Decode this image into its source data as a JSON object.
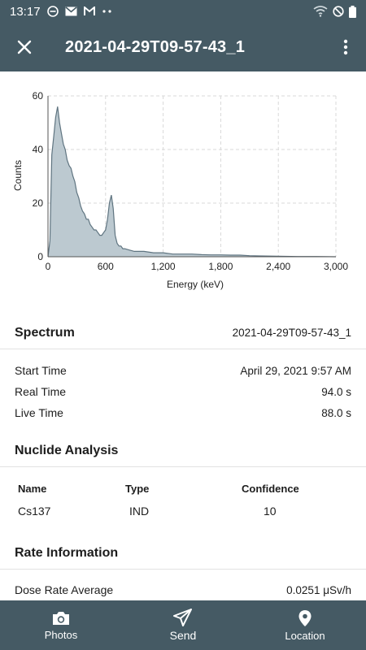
{
  "status_bar": {
    "time": "13:17",
    "icons_left": [
      "do-not-disturb-icon",
      "mail-icon",
      "gmail-icon",
      "more-dots-icon"
    ],
    "icons_right": [
      "wifi-icon",
      "blocked-icon",
      "battery-icon"
    ]
  },
  "app_bar": {
    "title": "2021-04-29T09-57-43_1",
    "close_icon": "close-icon",
    "menu_icon": "more-vert-icon"
  },
  "chart_data": {
    "type": "area",
    "title": "",
    "xlabel": "Energy (keV)",
    "ylabel": "Counts",
    "xlim": [
      0,
      3000
    ],
    "ylim": [
      0,
      60
    ],
    "x_ticks": [
      "0",
      "600",
      "1,200",
      "1,800",
      "2,400",
      "3,000"
    ],
    "y_ticks": [
      "0",
      "20",
      "40",
      "60"
    ],
    "grid": true,
    "series": [
      {
        "x": [
          0,
          20,
          40,
          60,
          80,
          100,
          120,
          140,
          160,
          180,
          200,
          220,
          240,
          260,
          280,
          300,
          320,
          340,
          360,
          380,
          400,
          420,
          440,
          460,
          480,
          500,
          520,
          540,
          560,
          580,
          600,
          620,
          640,
          660,
          680,
          700,
          720,
          740,
          760,
          780,
          800,
          850,
          900,
          950,
          1000,
          1100,
          1200,
          1300,
          1400,
          1500,
          1600,
          1700,
          1800,
          1900,
          2000,
          2100,
          2200,
          2400,
          2600,
          2800,
          3000
        ],
        "values": [
          0,
          6,
          38,
          45,
          52,
          56,
          50,
          46,
          42,
          40,
          36,
          34,
          33,
          30,
          28,
          24,
          22,
          19,
          17,
          16,
          14,
          14,
          12,
          11,
          10,
          10,
          9,
          8,
          8,
          9,
          10,
          14,
          20,
          23,
          18,
          8,
          5,
          4,
          4,
          3,
          3,
          2.5,
          2,
          2,
          2,
          1.5,
          1.5,
          1,
          1,
          1,
          0.8,
          0.7,
          0.7,
          0.6,
          0.6,
          0.4,
          0.3,
          0.2,
          0.1,
          0.1,
          0
        ]
      }
    ],
    "line_color": "#5f7480",
    "fill_color": "#bcc9d0"
  },
  "spectrum": {
    "title": "Spectrum",
    "name": "2021-04-29T09-57-43_1",
    "rows": [
      {
        "label": "Start Time",
        "value": "April 29, 2021 9:57 AM"
      },
      {
        "label": "Real Time",
        "value": "94.0 s"
      },
      {
        "label": "Live Time",
        "value": "88.0 s"
      }
    ]
  },
  "nuclide": {
    "title": "Nuclide Analysis",
    "headers": [
      "Name",
      "Type",
      "Confidence"
    ],
    "rows": [
      {
        "name": "Cs137",
        "type": "IND",
        "confidence": "10"
      }
    ]
  },
  "rate": {
    "title": "Rate Information",
    "rows": [
      {
        "label": "Dose Rate Average",
        "value": "0.0251 μSv/h"
      }
    ]
  },
  "bottom_nav": {
    "items": [
      {
        "label": "Photos",
        "icon": "camera-icon"
      },
      {
        "label": "Send",
        "icon": "send-icon"
      },
      {
        "label": "Location",
        "icon": "location-pin-icon"
      }
    ]
  },
  "colors": {
    "primary": "#455a64",
    "divider": "#e2e2e2"
  }
}
